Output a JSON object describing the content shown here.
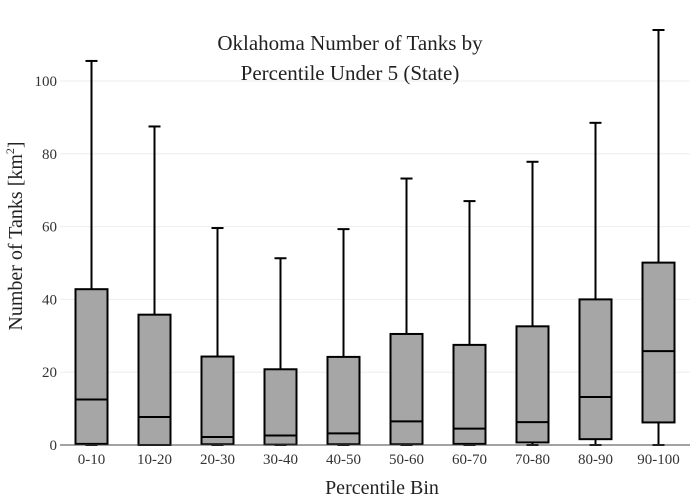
{
  "chart_data": {
    "type": "box",
    "title_lines": [
      "Oklahoma Number of Tanks by",
      "Percentile Under 5 (State)"
    ],
    "xlabel": "Percentile Bin",
    "ylabel": "Number of Tanks  [km",
    "ylabel_sup": "2",
    "ylabel_close": "]",
    "ylim": [
      0,
      114
    ],
    "yticks": [
      0,
      20,
      40,
      60,
      80,
      100
    ],
    "grid": true,
    "colors": {
      "box_fill": "#a6a6a6",
      "stroke": "#000000",
      "grid": "#eeeeee",
      "axis": "#444444"
    },
    "categories": [
      "0-10",
      "10-20",
      "20-30",
      "30-40",
      "40-50",
      "50-60",
      "60-70",
      "70-80",
      "80-90",
      "90-100"
    ],
    "boxes": [
      {
        "min": 0,
        "q1": 0.3,
        "median": 12.5,
        "q3": 42.8,
        "max": 105.5
      },
      {
        "min": 0,
        "q1": 0,
        "median": 7.7,
        "q3": 35.8,
        "max": 87.5
      },
      {
        "min": 0,
        "q1": 0.2,
        "median": 2.2,
        "q3": 24.3,
        "max": 59.6
      },
      {
        "min": 0,
        "q1": 0.1,
        "median": 2.6,
        "q3": 20.8,
        "max": 51.3
      },
      {
        "min": 0,
        "q1": 0.2,
        "median": 3.2,
        "q3": 24.2,
        "max": 59.3
      },
      {
        "min": 0,
        "q1": 0.2,
        "median": 6.5,
        "q3": 30.5,
        "max": 73.2
      },
      {
        "min": 0,
        "q1": 0.3,
        "median": 4.5,
        "q3": 27.5,
        "max": 67.0
      },
      {
        "min": 0,
        "q1": 0.7,
        "median": 6.3,
        "q3": 32.6,
        "max": 77.8
      },
      {
        "min": 0,
        "q1": 1.6,
        "median": 13.2,
        "q3": 40.0,
        "max": 88.5
      },
      {
        "min": 0,
        "q1": 6.2,
        "median": 25.8,
        "q3": 50.1,
        "max": 114.0
      }
    ]
  }
}
